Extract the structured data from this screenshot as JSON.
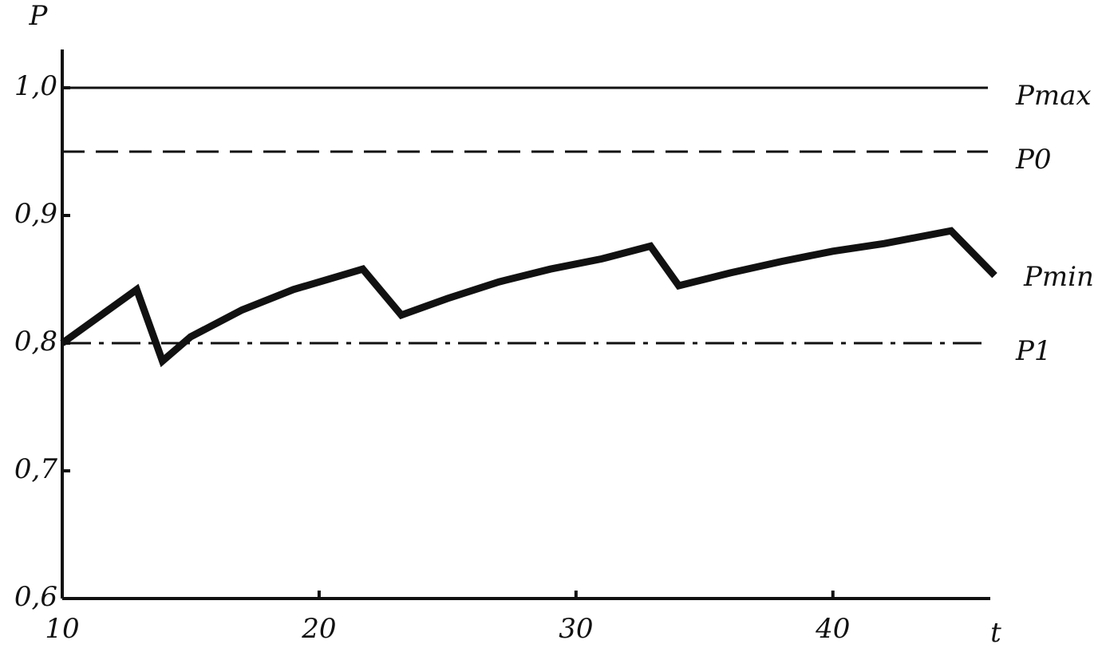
{
  "chart_data": {
    "type": "line",
    "x_label": "t",
    "y_label": "P",
    "xlim": [
      10,
      46.5
    ],
    "ylim": [
      0.6,
      1.03
    ],
    "xticks": [
      10,
      20,
      30,
      40
    ],
    "yticks": [
      {
        "value": 0.6,
        "label": "0,6"
      },
      {
        "value": 0.7,
        "label": "0,7"
      },
      {
        "value": 0.8,
        "label": "0,8"
      },
      {
        "value": 0.9,
        "label": "0,9"
      },
      {
        "value": 1.0,
        "label": "1,0"
      }
    ],
    "reference_lines": [
      {
        "name": "Pmax",
        "value": 1.0,
        "style": "solid"
      },
      {
        "name": "P0",
        "value": 0.95,
        "style": "dashed"
      },
      {
        "name": "P1",
        "value": 0.8,
        "style": "dashdot"
      }
    ],
    "series": [
      {
        "name": "Pmin",
        "color": "#111111",
        "x": [
          10,
          12.9,
          13.9,
          15,
          17,
          19,
          21.7,
          23.2,
          25,
          27,
          29,
          31,
          32.9,
          34,
          36,
          38,
          40,
          42,
          44.6,
          46.3
        ],
        "values": [
          0.8,
          0.842,
          0.786,
          0.805,
          0.826,
          0.842,
          0.858,
          0.822,
          0.835,
          0.848,
          0.858,
          0.866,
          0.876,
          0.845,
          0.855,
          0.864,
          0.872,
          0.878,
          0.888,
          0.853
        ]
      }
    ]
  }
}
